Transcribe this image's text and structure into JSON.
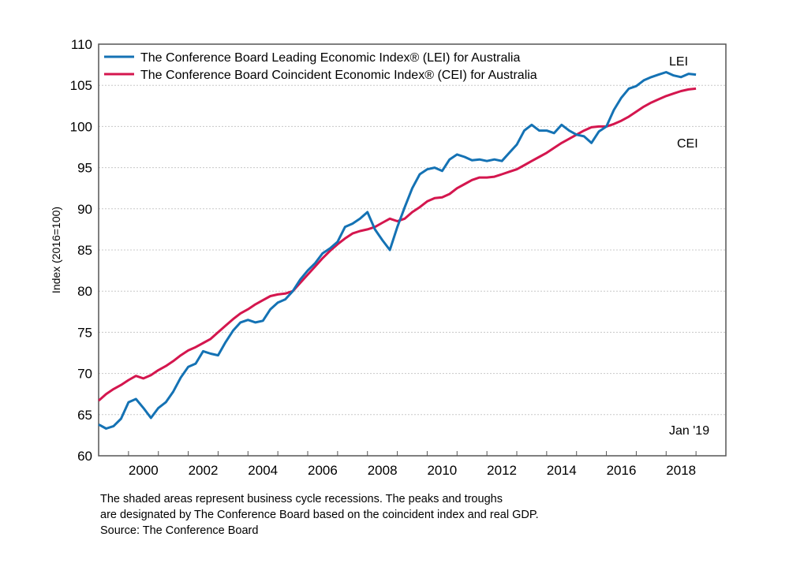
{
  "chart_data": {
    "type": "line",
    "title": "",
    "xlabel": "",
    "ylabel": "Index (2016=100)",
    "ylim": [
      60,
      110
    ],
    "xlim": [
      1999.0,
      2020.0
    ],
    "yticks": [
      "60",
      "65",
      "70",
      "75",
      "80",
      "85",
      "90",
      "95",
      "100",
      "105",
      "110"
    ],
    "xtick_labels": [
      "2000",
      "2002",
      "2004",
      "2006",
      "2008",
      "2010",
      "2012",
      "2014",
      "2016",
      "2018"
    ],
    "grid": "horizontal dotted",
    "legend_position": "top-left",
    "x": [
      1999.0,
      1999.25,
      1999.5,
      1999.75,
      2000.0,
      2000.25,
      2000.5,
      2000.75,
      2001.0,
      2001.25,
      2001.5,
      2001.75,
      2002.0,
      2002.25,
      2002.5,
      2002.75,
      2003.0,
      2003.25,
      2003.5,
      2003.75,
      2004.0,
      2004.25,
      2004.5,
      2004.75,
      2005.0,
      2005.25,
      2005.5,
      2005.75,
      2006.0,
      2006.25,
      2006.5,
      2006.75,
      2007.0,
      2007.25,
      2007.5,
      2007.75,
      2008.0,
      2008.25,
      2008.5,
      2008.75,
      2009.0,
      2009.25,
      2009.5,
      2009.75,
      2010.0,
      2010.25,
      2010.5,
      2010.75,
      2011.0,
      2011.25,
      2011.5,
      2011.75,
      2012.0,
      2012.25,
      2012.5,
      2012.75,
      2013.0,
      2013.25,
      2013.5,
      2013.75,
      2014.0,
      2014.25,
      2014.5,
      2014.75,
      2015.0,
      2015.25,
      2015.5,
      2015.75,
      2016.0,
      2016.25,
      2016.5,
      2016.75,
      2017.0,
      2017.25,
      2017.5,
      2017.75,
      2018.0,
      2018.25,
      2018.5,
      2018.75,
      2019.0
    ],
    "series": [
      {
        "name": "The Conference Board Leading Economic Index®  (LEI) for Australia",
        "short": "LEI",
        "color": "#1472b4",
        "values": [
          63.8,
          63.3,
          63.6,
          64.5,
          66.5,
          66.9,
          65.8,
          64.6,
          65.8,
          66.5,
          67.8,
          69.5,
          70.8,
          71.2,
          72.7,
          72.4,
          72.2,
          73.8,
          75.2,
          76.2,
          76.5,
          76.2,
          76.4,
          77.8,
          78.6,
          79.0,
          80.0,
          81.4,
          82.5,
          83.4,
          84.6,
          85.2,
          86.0,
          87.8,
          88.2,
          88.8,
          89.6,
          87.5,
          86.2,
          85.0,
          87.8,
          90.2,
          92.5,
          94.2,
          94.8,
          95.0,
          94.6,
          96.0,
          96.6,
          96.3,
          95.9,
          96.0,
          95.8,
          96.0,
          95.8,
          96.8,
          97.8,
          99.5,
          100.2,
          99.5,
          99.5,
          99.2,
          100.2,
          99.5,
          99.0,
          98.8,
          98.0,
          99.4,
          100.0,
          102.0,
          103.5,
          104.6,
          104.9,
          105.6,
          106.0,
          106.3,
          106.6,
          106.2,
          106.0,
          106.4,
          106.3
        ]
      },
      {
        "name": "The Conference Board Coincident Economic Index®  (CEI) for Australia",
        "short": "CEI",
        "color": "#d4164e",
        "values": [
          66.7,
          67.5,
          68.1,
          68.6,
          69.2,
          69.7,
          69.4,
          69.8,
          70.4,
          70.9,
          71.5,
          72.2,
          72.8,
          73.2,
          73.7,
          74.2,
          75.0,
          75.8,
          76.6,
          77.3,
          77.8,
          78.4,
          78.9,
          79.4,
          79.6,
          79.7,
          80.0,
          81.0,
          82.0,
          83.0,
          84.0,
          84.9,
          85.7,
          86.4,
          87.0,
          87.3,
          87.5,
          87.8,
          88.3,
          88.8,
          88.5,
          88.8,
          89.6,
          90.2,
          90.9,
          91.3,
          91.4,
          91.8,
          92.5,
          93.0,
          93.5,
          93.8,
          93.8,
          93.9,
          94.2,
          94.5,
          94.8,
          95.3,
          95.8,
          96.3,
          96.8,
          97.4,
          98.0,
          98.5,
          99.0,
          99.5,
          99.9,
          100.0,
          100.0,
          100.3,
          100.7,
          101.2,
          101.8,
          102.4,
          102.9,
          103.3,
          103.7,
          104.0,
          104.3,
          104.5,
          104.6
        ]
      }
    ],
    "annotations": [
      "LEI",
      "CEI",
      "Jan '19"
    ]
  },
  "notes": {
    "line1": "The shaded areas represent business cycle recessions. The peaks and troughs",
    "line2": "are designated by The Conference Board based on the coincident index and real GDP.",
    "line3": "Source: The Conference Board"
  }
}
